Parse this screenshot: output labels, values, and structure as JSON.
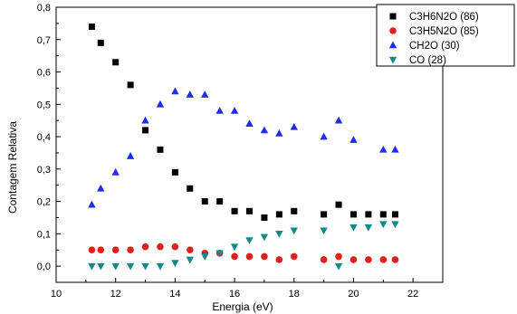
{
  "chart_data": {
    "type": "scatter",
    "xlabel": "Energia (eV)",
    "ylabel": "Contagem Relativa",
    "xlim": [
      10,
      23
    ],
    "ylim": [
      -0.05,
      0.8
    ],
    "xticks": [
      10,
      12,
      14,
      16,
      18,
      20,
      22
    ],
    "yticks": [
      0.0,
      0.1,
      0.2,
      0.3,
      0.4,
      0.5,
      0.6,
      0.7,
      0.8
    ],
    "xtick_labels": [
      "10",
      "12",
      "14",
      "16",
      "18",
      "20",
      "22"
    ],
    "ytick_labels": [
      "0,0",
      "0,1",
      "0,2",
      "0,3",
      "0,4",
      "0,5",
      "0,6",
      "0,7",
      "0,8"
    ],
    "grid": false,
    "legend_position": "top-right",
    "series": [
      {
        "name": "C3H6N2O (86)",
        "marker": "square",
        "color": "#000000",
        "x": [
          11.2,
          11.5,
          12.0,
          12.5,
          13.0,
          13.5,
          14.0,
          14.5,
          15.0,
          15.5,
          16.0,
          16.5,
          17.0,
          17.5,
          18.0,
          19.0,
          19.5,
          20.0,
          20.5,
          21.0,
          21.4
        ],
        "y": [
          0.74,
          0.69,
          0.63,
          0.56,
          0.42,
          0.36,
          0.29,
          0.24,
          0.2,
          0.2,
          0.17,
          0.17,
          0.15,
          0.16,
          0.17,
          0.16,
          0.19,
          0.16,
          0.16,
          0.16,
          0.16
        ]
      },
      {
        "name": "C3H5N2O (85)",
        "marker": "circle",
        "color": "#e0201b",
        "x": [
          11.2,
          11.5,
          12.0,
          12.5,
          13.0,
          13.5,
          14.0,
          14.5,
          15.0,
          15.5,
          16.0,
          16.5,
          17.0,
          17.5,
          18.0,
          19.0,
          19.5,
          20.0,
          20.5,
          21.0,
          21.4
        ],
        "y": [
          0.05,
          0.05,
          0.05,
          0.05,
          0.06,
          0.06,
          0.06,
          0.05,
          0.04,
          0.04,
          0.03,
          0.03,
          0.03,
          0.02,
          0.03,
          0.02,
          0.03,
          0.02,
          0.02,
          0.02,
          0.02
        ]
      },
      {
        "name": "CH2O (30)",
        "marker": "triangle-up",
        "color": "#1f2ee8",
        "x": [
          11.2,
          11.5,
          12.0,
          12.5,
          13.0,
          13.5,
          14.0,
          14.5,
          15.0,
          15.5,
          16.0,
          16.5,
          17.0,
          17.5,
          18.0,
          19.0,
          19.5,
          20.0,
          21.0,
          21.4
        ],
        "y": [
          0.19,
          0.24,
          0.29,
          0.34,
          0.45,
          0.5,
          0.54,
          0.53,
          0.53,
          0.48,
          0.48,
          0.44,
          0.42,
          0.41,
          0.43,
          0.4,
          0.45,
          0.39,
          0.36,
          0.36
        ]
      },
      {
        "name": "CO (28)",
        "marker": "triangle-down",
        "color": "#138a8a",
        "x": [
          11.2,
          11.5,
          12.0,
          12.5,
          13.0,
          13.5,
          14.0,
          14.5,
          15.0,
          15.5,
          16.0,
          16.5,
          17.0,
          17.5,
          18.0,
          19.0,
          19.5,
          20.0,
          20.5,
          21.0,
          21.4
        ],
        "y": [
          0.0,
          0.0,
          0.0,
          0.0,
          0.0,
          0.0,
          0.01,
          0.02,
          0.03,
          0.04,
          0.06,
          0.08,
          0.09,
          0.1,
          0.11,
          0.11,
          0.0,
          0.12,
          0.12,
          0.13,
          0.13
        ]
      }
    ]
  }
}
